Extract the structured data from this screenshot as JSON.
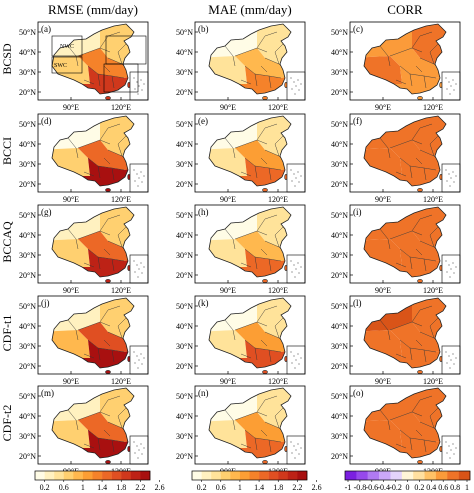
{
  "columns": [
    {
      "title": "RMSE (mm/day)",
      "metric": "rmse"
    },
    {
      "title": "MAE (mm/day)",
      "metric": "mae"
    },
    {
      "title": "CORR",
      "metric": "corr"
    }
  ],
  "rows": [
    {
      "label": "BCSD",
      "panels": [
        "(a)",
        "(b)",
        "(c)"
      ]
    },
    {
      "label": "BCCI",
      "panels": [
        "(d)",
        "(e)",
        "(f)"
      ]
    },
    {
      "label": "BCCAQ",
      "panels": [
        "(g)",
        "(h)",
        "(i)"
      ]
    },
    {
      "label": "CDF-t1",
      "panels": [
        "(j)",
        "(k)",
        "(l)"
      ]
    },
    {
      "label": "CDF-t2",
      "panels": [
        "(m)",
        "(n)",
        "(o)"
      ]
    }
  ],
  "axes": {
    "lat_ticks": [
      "50°N",
      "40°N",
      "30°N",
      "20°N"
    ],
    "lon_ticks": [
      "90°E",
      "120°E"
    ]
  },
  "region_labels": [
    "NWC",
    "SWC"
  ],
  "colorbars": {
    "rmse": {
      "ticks": [
        "0.2",
        "0.6",
        "1",
        "1.4",
        "1.8",
        "2.2",
        "2.6"
      ],
      "colors": [
        "#fffce6",
        "#fff1c0",
        "#ffe39a",
        "#ffd070",
        "#ffb84e",
        "#fc9e34",
        "#f5822a",
        "#ec6826",
        "#e04f22",
        "#d0381c",
        "#bd2216",
        "#a81010"
      ]
    },
    "mae": {
      "ticks": [
        "0.2",
        "0.6",
        "1",
        "1.4",
        "1.8",
        "2.2",
        "2.6"
      ],
      "colors": [
        "#fffce6",
        "#fff1c0",
        "#ffe39a",
        "#ffd070",
        "#ffb84e",
        "#fc9e34",
        "#f5822a",
        "#ec6826",
        "#e04f22",
        "#d0381c",
        "#bd2216",
        "#a81010"
      ]
    },
    "corr": {
      "ticks": [
        "-1",
        "-0.8",
        "-0.6",
        "-0.4",
        "-0.2",
        "0",
        "0.2",
        "0.4",
        "0.6",
        "0.8",
        "1"
      ],
      "colors": [
        "#7b1fe0",
        "#9648ec",
        "#b07af2",
        "#cba8f8",
        "#e4d4fc",
        "#fff6d8",
        "#ffe0a0",
        "#ffc266",
        "#fb9b3a",
        "#ef7328",
        "#d95418"
      ]
    }
  },
  "chart_data": {
    "type": "heatmap",
    "note_free": true,
    "columns": [
      "RMSE (mm/day)",
      "MAE (mm/day)",
      "CORR"
    ],
    "rows": [
      "BCSD",
      "BCCI",
      "BCCAQ",
      "CDF-t1",
      "CDF-t2"
    ],
    "x_ticks": [
      "90°E",
      "120°E"
    ],
    "y_ticks": [
      "50°N",
      "40°N",
      "30°N",
      "20°N"
    ],
    "rmse_range": [
      0.2,
      2.6
    ],
    "corr_range": [
      -1,
      1
    ],
    "regional_levels": {
      "rmse": {
        "BCSD": {
          "NWC": 0.3,
          "SWC": 0.9,
          "North": 0.8,
          "Central": 1.6,
          "South": 2.3
        },
        "BCCI": {
          "NWC": 0.2,
          "SWC": 0.8,
          "North": 0.8,
          "Central": 1.8,
          "South": 2.6
        },
        "BCCAQ": {
          "NWC": 0.3,
          "SWC": 0.9,
          "North": 0.8,
          "Central": 1.7,
          "South": 2.4
        },
        "CDF-t1": {
          "NWC": 0.3,
          "SWC": 1.0,
          "North": 0.9,
          "Central": 2.0,
          "South": 2.7
        },
        "CDF-t2": {
          "NWC": 0.3,
          "SWC": 0.9,
          "North": 0.8,
          "Central": 1.8,
          "South": 2.6
        }
      },
      "mae": {
        "BCSD": {
          "NWC": 0.2,
          "SWC": 0.5,
          "North": 0.5,
          "Central": 1.0,
          "South": 1.6
        },
        "BCCI": {
          "NWC": 0.2,
          "SWC": 0.5,
          "North": 0.6,
          "Central": 1.2,
          "South": 1.8
        },
        "BCCAQ": {
          "NWC": 0.2,
          "SWC": 0.6,
          "North": 0.5,
          "Central": 1.1,
          "South": 1.7
        },
        "CDF-t1": {
          "NWC": 0.2,
          "SWC": 0.6,
          "North": 0.6,
          "Central": 1.3,
          "South": 1.9
        },
        "CDF-t2": {
          "NWC": 0.2,
          "SWC": 0.6,
          "North": 0.6,
          "Central": 1.2,
          "South": 1.8
        }
      },
      "corr": {
        "BCSD": {
          "NWC": 0.6,
          "SWC": 0.7,
          "North": 0.7,
          "Central": 0.6,
          "South": 0.6
        },
        "BCCI": {
          "NWC": 0.8,
          "SWC": 0.8,
          "North": 0.8,
          "Central": 0.75,
          "South": 0.75
        },
        "BCCAQ": {
          "NWC": 0.7,
          "SWC": 0.75,
          "North": 0.75,
          "Central": 0.7,
          "South": 0.7
        },
        "CDF-t1": {
          "NWC": 0.85,
          "SWC": 0.8,
          "North": 0.8,
          "Central": 0.75,
          "South": 0.75
        },
        "CDF-t2": {
          "NWC": 0.75,
          "SWC": 0.75,
          "North": 0.75,
          "Central": 0.7,
          "South": 0.7
        }
      }
    }
  }
}
